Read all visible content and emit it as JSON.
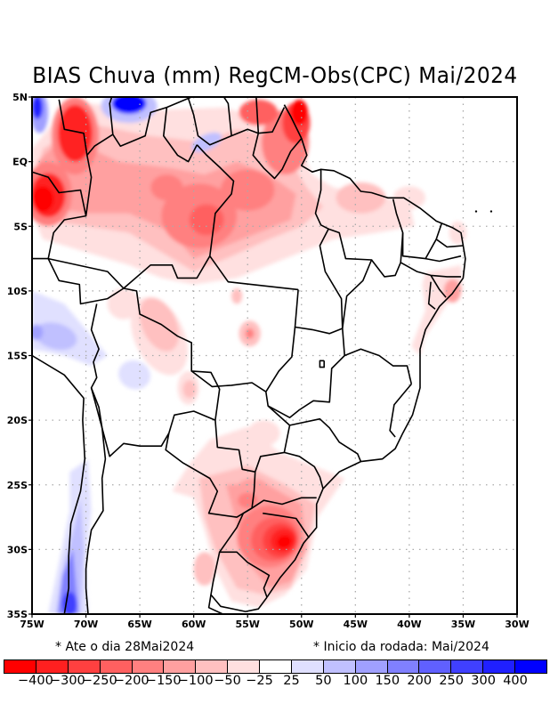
{
  "title": "BIAS Chuva (mm) RegCM-Obs(CPC) Mai/2024",
  "map": {
    "lon_range": [
      -75,
      -30
    ],
    "lat_range": [
      -35,
      5
    ],
    "lon_ticks": [
      {
        "value": -75,
        "label": "75W"
      },
      {
        "value": -70,
        "label": "70W"
      },
      {
        "value": -65,
        "label": "65W"
      },
      {
        "value": -60,
        "label": "60W"
      },
      {
        "value": -55,
        "label": "55W"
      },
      {
        "value": -50,
        "label": "50W"
      },
      {
        "value": -45,
        "label": "45W"
      },
      {
        "value": -40,
        "label": "40W"
      },
      {
        "value": -35,
        "label": "35W"
      },
      {
        "value": -30,
        "label": "30W"
      }
    ],
    "lat_ticks": [
      {
        "value": 5,
        "label": "5N"
      },
      {
        "value": 0,
        "label": "EQ"
      },
      {
        "value": -5,
        "label": "5S"
      },
      {
        "value": -10,
        "label": "10S"
      },
      {
        "value": -15,
        "label": "15S"
      },
      {
        "value": -20,
        "label": "20S"
      },
      {
        "value": -25,
        "label": "25S"
      },
      {
        "value": -30,
        "label": "30S"
      },
      {
        "value": -35,
        "label": "35S"
      }
    ],
    "grid": true
  },
  "notes": {
    "until": "* Ate o dia 28Mai2024",
    "start": "* Inicio da rodada: Mai/2024"
  },
  "colorbar": {
    "colors": [
      "#ff0000",
      "#ff2020",
      "#ff4040",
      "#ff6060",
      "#ff8080",
      "#ffa0a0",
      "#ffc0c0",
      "#ffe0e0",
      "#ffffff",
      "#e0e0ff",
      "#c0c0ff",
      "#a0a0ff",
      "#8080ff",
      "#6060ff",
      "#4040ff",
      "#2020ff",
      "#0000ff"
    ],
    "labels": [
      "-400",
      "-300",
      "-250",
      "-200",
      "-150",
      "-100",
      "-50",
      "-25",
      "25",
      "50",
      "100",
      "150",
      "200",
      "250",
      "300",
      "400"
    ],
    "units": "mm"
  }
}
